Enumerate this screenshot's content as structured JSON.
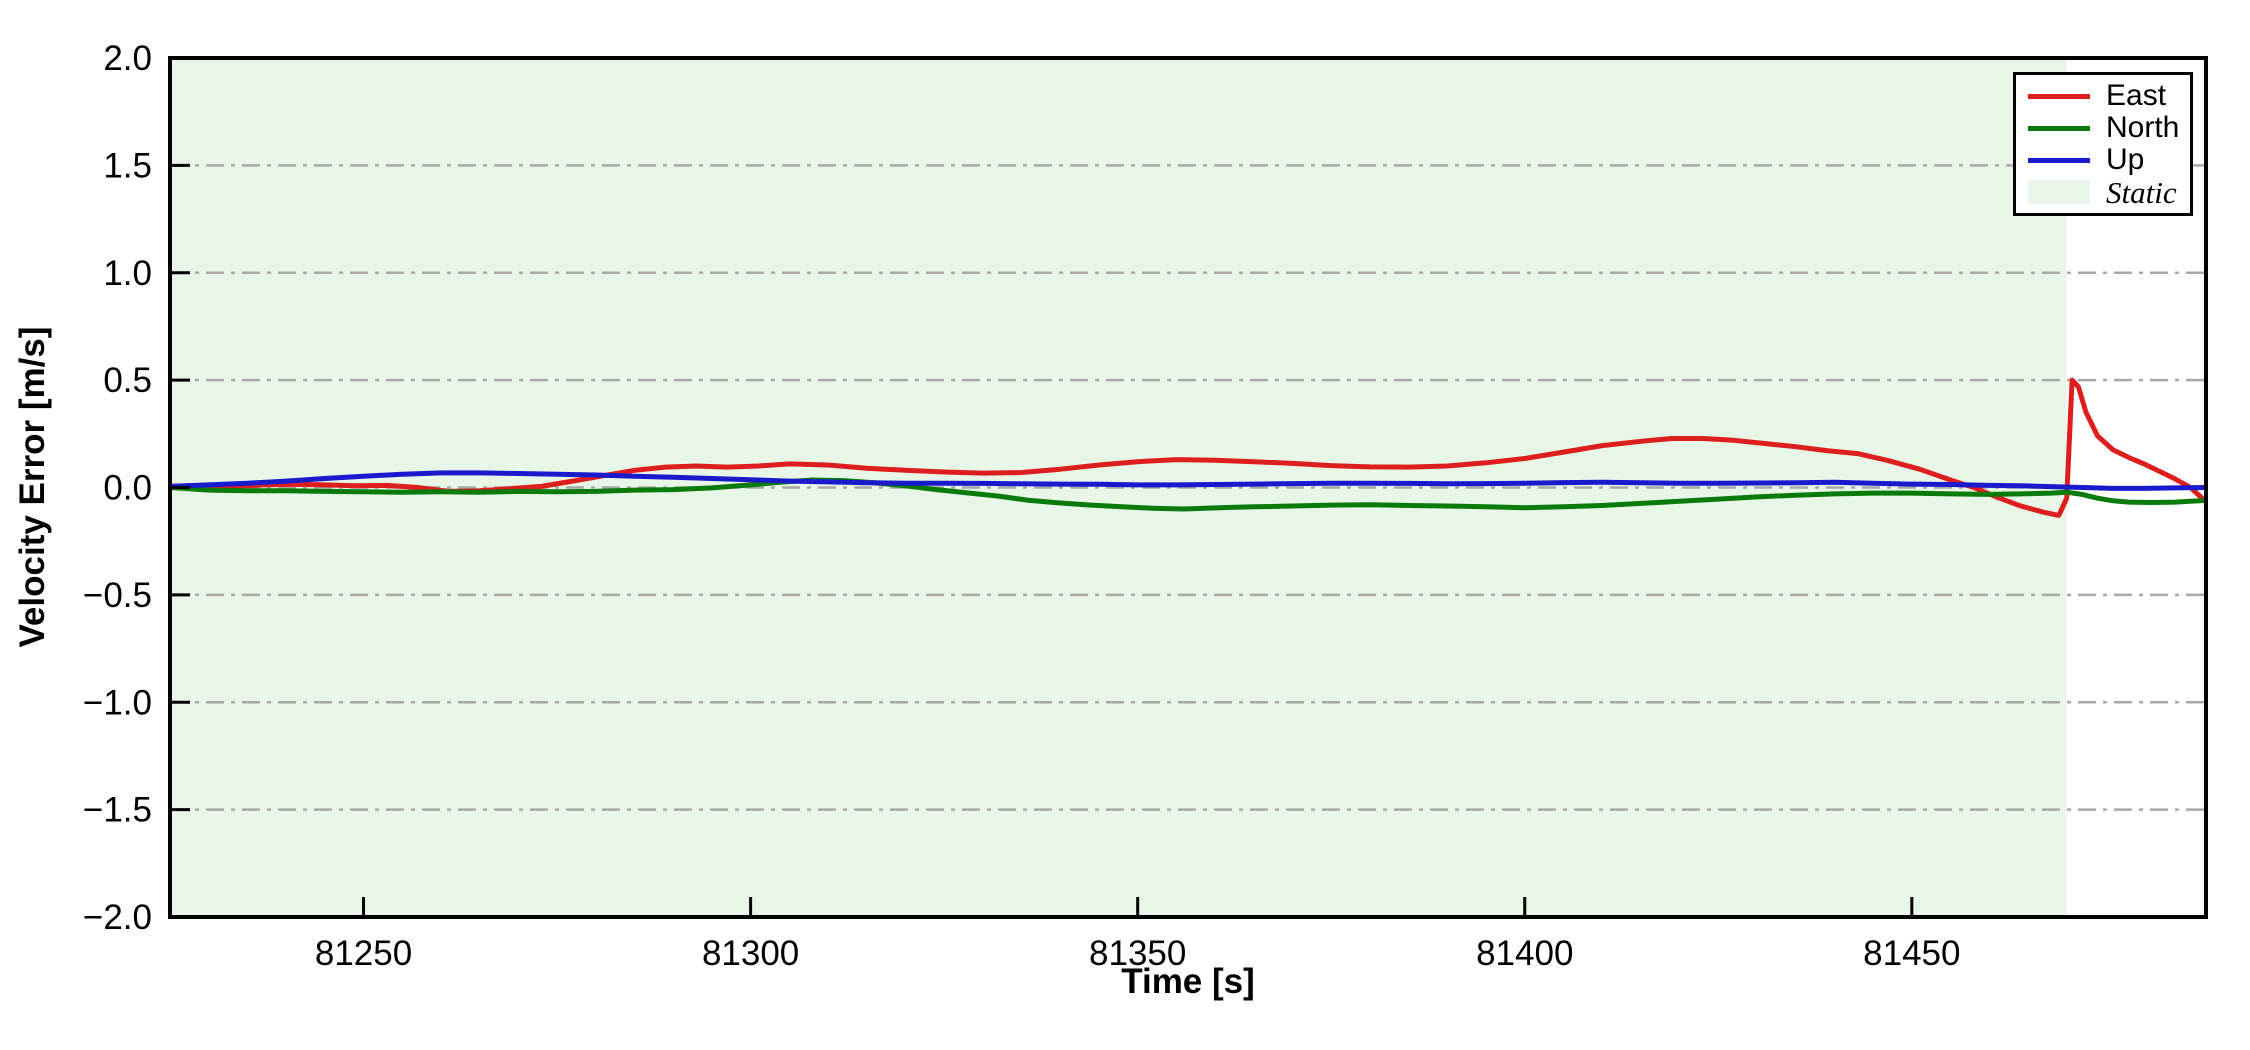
{
  "chart_data": {
    "type": "line",
    "xlabel": "Time [s]",
    "ylabel": "Velocity Error [m/s]",
    "xlim": [
      81225,
      81488
    ],
    "ylim": [
      -2.0,
      2.0
    ],
    "xticks": {
      "values": [
        81250,
        81300,
        81350,
        81400,
        81450
      ],
      "labels": [
        "81250",
        "81300",
        "81350",
        "81400",
        "81450"
      ]
    },
    "yticks": {
      "values": [
        2.0,
        1.5,
        1.0,
        0.5,
        0.0,
        -0.5,
        -1.0,
        -1.5,
        -2.0
      ],
      "labels": [
        "2.0",
        "1.5",
        "1.0",
        "0.5",
        "0.0",
        "−0.5",
        "−1.0",
        "−1.5",
        "−2.0"
      ]
    },
    "grid": {
      "on": true,
      "style": "dash-dot",
      "color": "#a8a8a8",
      "exclude_values": [
        2.0,
        -2.0
      ]
    },
    "static_region": {
      "label": "Static",
      "start": 81225,
      "end": 81470,
      "color": "#e7f6e7"
    },
    "series": [
      {
        "name": "East",
        "color": "#dd1e1e",
        "points": [
          [
            81225,
            0.005
          ],
          [
            81229,
            0.01
          ],
          [
            81233,
            0.005
          ],
          [
            81237,
            0.012
          ],
          [
            81241,
            0.015
          ],
          [
            81245,
            0.012
          ],
          [
            81249,
            0.008
          ],
          [
            81253,
            0.01
          ],
          [
            81257,
            0.0
          ],
          [
            81261,
            -0.018
          ],
          [
            81265,
            -0.015
          ],
          [
            81269,
            -0.005
          ],
          [
            81273,
            0.005
          ],
          [
            81277,
            0.03
          ],
          [
            81281,
            0.055
          ],
          [
            81285,
            0.08
          ],
          [
            81289,
            0.095
          ],
          [
            81293,
            0.1
          ],
          [
            81297,
            0.095
          ],
          [
            81301,
            0.1
          ],
          [
            81305,
            0.11
          ],
          [
            81310,
            0.105
          ],
          [
            81315,
            0.09
          ],
          [
            81320,
            0.08
          ],
          [
            81325,
            0.072
          ],
          [
            81330,
            0.067
          ],
          [
            81335,
            0.07
          ],
          [
            81340,
            0.085
          ],
          [
            81345,
            0.105
          ],
          [
            81350,
            0.12
          ],
          [
            81355,
            0.13
          ],
          [
            81360,
            0.127
          ],
          [
            81365,
            0.12
          ],
          [
            81370,
            0.112
          ],
          [
            81375,
            0.102
          ],
          [
            81380,
            0.096
          ],
          [
            81385,
            0.095
          ],
          [
            81390,
            0.1
          ],
          [
            81395,
            0.115
          ],
          [
            81400,
            0.135
          ],
          [
            81405,
            0.165
          ],
          [
            81410,
            0.195
          ],
          [
            81415,
            0.215
          ],
          [
            81419,
            0.228
          ],
          [
            81423,
            0.228
          ],
          [
            81427,
            0.22
          ],
          [
            81431,
            0.205
          ],
          [
            81435,
            0.19
          ],
          [
            81439,
            0.172
          ],
          [
            81443,
            0.158
          ],
          [
            81447,
            0.125
          ],
          [
            81451,
            0.085
          ],
          [
            81455,
            0.035
          ],
          [
            81458,
            0.0
          ],
          [
            81461,
            -0.045
          ],
          [
            81464,
            -0.085
          ],
          [
            81467,
            -0.115
          ],
          [
            81469,
            -0.13
          ],
          [
            81470,
            -0.05
          ],
          [
            81470.7,
            0.5
          ],
          [
            81471.5,
            0.47
          ],
          [
            81472.5,
            0.35
          ],
          [
            81474,
            0.24
          ],
          [
            81476,
            0.175
          ],
          [
            81478,
            0.14
          ],
          [
            81480,
            0.11
          ],
          [
            81482,
            0.075
          ],
          [
            81484,
            0.04
          ],
          [
            81486,
            0.0
          ],
          [
            81487.5,
            -0.05
          ],
          [
            81488,
            -0.06
          ]
        ]
      },
      {
        "name": "North",
        "color": "#0a7a0a",
        "points": [
          [
            81225,
            0.0
          ],
          [
            81230,
            -0.012
          ],
          [
            81235,
            -0.015
          ],
          [
            81240,
            -0.015
          ],
          [
            81245,
            -0.018
          ],
          [
            81250,
            -0.02
          ],
          [
            81255,
            -0.022
          ],
          [
            81260,
            -0.02
          ],
          [
            81265,
            -0.022
          ],
          [
            81270,
            -0.018
          ],
          [
            81275,
            -0.02
          ],
          [
            81280,
            -0.018
          ],
          [
            81285,
            -0.012
          ],
          [
            81290,
            -0.01
          ],
          [
            81295,
            -0.002
          ],
          [
            81300,
            0.012
          ],
          [
            81304,
            0.025
          ],
          [
            81308,
            0.035
          ],
          [
            81312,
            0.032
          ],
          [
            81316,
            0.022
          ],
          [
            81320,
            0.008
          ],
          [
            81324,
            -0.01
          ],
          [
            81328,
            -0.025
          ],
          [
            81332,
            -0.04
          ],
          [
            81336,
            -0.06
          ],
          [
            81340,
            -0.072
          ],
          [
            81344,
            -0.082
          ],
          [
            81348,
            -0.09
          ],
          [
            81352,
            -0.097
          ],
          [
            81356,
            -0.1
          ],
          [
            81360,
            -0.095
          ],
          [
            81365,
            -0.09
          ],
          [
            81370,
            -0.086
          ],
          [
            81375,
            -0.082
          ],
          [
            81380,
            -0.08
          ],
          [
            81385,
            -0.084
          ],
          [
            81390,
            -0.086
          ],
          [
            81395,
            -0.09
          ],
          [
            81400,
            -0.094
          ],
          [
            81405,
            -0.09
          ],
          [
            81410,
            -0.084
          ],
          [
            81415,
            -0.074
          ],
          [
            81420,
            -0.064
          ],
          [
            81425,
            -0.054
          ],
          [
            81430,
            -0.044
          ],
          [
            81435,
            -0.036
          ],
          [
            81440,
            -0.03
          ],
          [
            81445,
            -0.026
          ],
          [
            81450,
            -0.026
          ],
          [
            81455,
            -0.03
          ],
          [
            81460,
            -0.032
          ],
          [
            81464,
            -0.03
          ],
          [
            81468,
            -0.026
          ],
          [
            81470,
            -0.022
          ],
          [
            81472,
            -0.032
          ],
          [
            81474,
            -0.05
          ],
          [
            81476,
            -0.062
          ],
          [
            81478,
            -0.068
          ],
          [
            81481,
            -0.07
          ],
          [
            81484,
            -0.068
          ],
          [
            81486,
            -0.064
          ],
          [
            81488,
            -0.06
          ]
        ]
      },
      {
        "name": "Up",
        "color": "#1a1acd",
        "points": [
          [
            81225,
            0.005
          ],
          [
            81230,
            0.012
          ],
          [
            81235,
            0.02
          ],
          [
            81240,
            0.03
          ],
          [
            81245,
            0.042
          ],
          [
            81250,
            0.052
          ],
          [
            81255,
            0.062
          ],
          [
            81260,
            0.068
          ],
          [
            81265,
            0.068
          ],
          [
            81270,
            0.065
          ],
          [
            81275,
            0.062
          ],
          [
            81280,
            0.058
          ],
          [
            81285,
            0.052
          ],
          [
            81290,
            0.048
          ],
          [
            81295,
            0.042
          ],
          [
            81300,
            0.036
          ],
          [
            81305,
            0.03
          ],
          [
            81310,
            0.026
          ],
          [
            81315,
            0.022
          ],
          [
            81320,
            0.02
          ],
          [
            81325,
            0.02
          ],
          [
            81330,
            0.019
          ],
          [
            81335,
            0.017
          ],
          [
            81340,
            0.016
          ],
          [
            81345,
            0.015
          ],
          [
            81350,
            0.012
          ],
          [
            81355,
            0.012
          ],
          [
            81360,
            0.014
          ],
          [
            81365,
            0.016
          ],
          [
            81370,
            0.018
          ],
          [
            81375,
            0.02
          ],
          [
            81380,
            0.02
          ],
          [
            81385,
            0.019
          ],
          [
            81390,
            0.017
          ],
          [
            81395,
            0.018
          ],
          [
            81400,
            0.02
          ],
          [
            81405,
            0.023
          ],
          [
            81410,
            0.024
          ],
          [
            81415,
            0.022
          ],
          [
            81420,
            0.02
          ],
          [
            81425,
            0.02
          ],
          [
            81430,
            0.021
          ],
          [
            81435,
            0.022
          ],
          [
            81440,
            0.024
          ],
          [
            81445,
            0.02
          ],
          [
            81450,
            0.016
          ],
          [
            81455,
            0.014
          ],
          [
            81460,
            0.01
          ],
          [
            81464,
            0.008
          ],
          [
            81468,
            0.004
          ],
          [
            81472,
            0.0
          ],
          [
            81476,
            -0.004
          ],
          [
            81480,
            -0.004
          ],
          [
            81484,
            -0.002
          ],
          [
            81488,
            0.0
          ]
        ]
      }
    ]
  },
  "legend": {
    "items": [
      {
        "label": "East",
        "type": "line",
        "color": "#dd1e1e"
      },
      {
        "label": "North",
        "type": "line",
        "color": "#0a7a0a"
      },
      {
        "label": "Up",
        "type": "line",
        "color": "#1a1acd"
      },
      {
        "label": "Static",
        "type": "patch",
        "color": "#e7f6e7"
      }
    ]
  },
  "axes_text": {
    "xlabel": "Time [s]",
    "ylabel": "Velocity Error [m/s]"
  }
}
